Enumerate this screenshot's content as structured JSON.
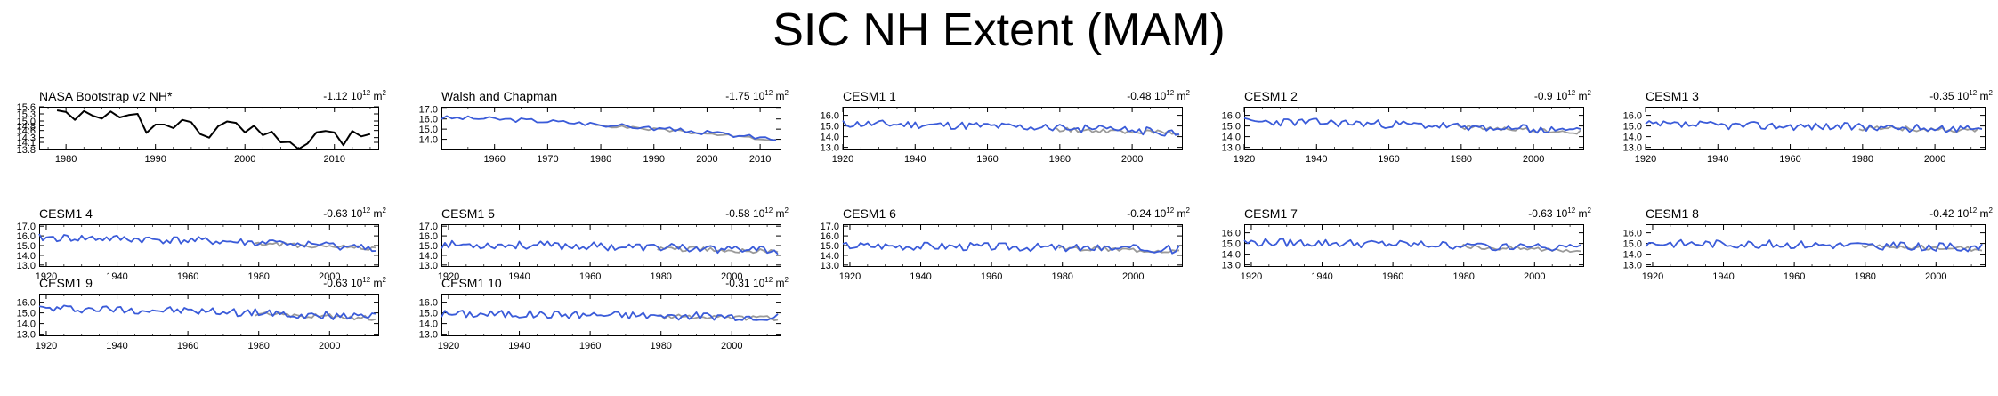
{
  "title": "SIC NH Extent (MAM)",
  "colors": {
    "single": "#000000",
    "model": "#3a5bd9",
    "obs": "#9a9a9a"
  },
  "trend_units": {
    "base": "10",
    "exponent": "12",
    "unit": "m",
    "unit_exp": "2"
  },
  "chart_data": [
    {
      "type": "line",
      "title": "NASA Bootstrap v2 NH*",
      "trend": "-1.12",
      "xlim": [
        1977,
        2015
      ],
      "ylim": [
        13.8,
        15.6
      ],
      "xticks": [
        "1980",
        "1990",
        "2000",
        "2010"
      ],
      "yticks": [
        "13.8",
        "14.1",
        "14.3",
        "14.6",
        "14.8",
        "15.0",
        "15.3",
        "15.6"
      ],
      "style": "single",
      "series": [
        {
          "x": [
            1979,
            1980,
            1981,
            1982,
            1983,
            1984,
            1985,
            1986,
            1987,
            1988,
            1989,
            1990,
            1991,
            1992,
            1993,
            1994,
            1995,
            1996,
            1997,
            1998,
            1999,
            2000,
            2001,
            2002,
            2003,
            2004,
            2005,
            2006,
            2007,
            2008,
            2009,
            2010,
            2011,
            2012,
            2013,
            2014
          ],
          "values": [
            15.45,
            15.38,
            15.05,
            15.42,
            15.22,
            15.1,
            15.4,
            15.15,
            15.25,
            15.3,
            14.5,
            14.85,
            14.85,
            14.7,
            15.05,
            14.95,
            14.45,
            14.3,
            14.78,
            14.98,
            14.92,
            14.52,
            14.8,
            14.4,
            14.55,
            14.1,
            14.12,
            13.82,
            14.05,
            14.52,
            14.58,
            14.52,
            13.98,
            14.58,
            14.35,
            14.45
          ]
        }
      ]
    },
    {
      "type": "line",
      "title": "Walsh and Chapman",
      "trend": "-1.75",
      "xlim": [
        1950,
        2014
      ],
      "ylim": [
        13.0,
        17.2
      ],
      "xticks": [
        "1960",
        "1970",
        "1980",
        "1990",
        "2000",
        "2010"
      ],
      "yticks": [
        "14.0",
        "15.0",
        "16.0",
        "17.0"
      ],
      "style": "pair",
      "seed": 3,
      "x_start": 1950,
      "x_end": 2013,
      "obs_start": 1979,
      "start": 16.1,
      "end": 14.0,
      "amp": 0.22
    },
    {
      "type": "line",
      "title": "CESM1 1",
      "trend": "-0.48",
      "xlim": [
        1920,
        2014
      ],
      "ylim": [
        12.8,
        16.8
      ],
      "xticks": [
        "1920",
        "1940",
        "1960",
        "1980",
        "2000"
      ],
      "yticks": [
        "13.0",
        "14.0",
        "15.0",
        "16.0"
      ],
      "style": "pair",
      "seed": 11,
      "x_start": 1920,
      "x_end": 2013,
      "obs_start": 1979,
      "start": 15.2,
      "end": 14.4,
      "amp": 0.38
    },
    {
      "type": "line",
      "title": "CESM1 2",
      "trend": "-0.9",
      "xlim": [
        1920,
        2014
      ],
      "ylim": [
        12.8,
        16.8
      ],
      "xticks": [
        "1920",
        "1940",
        "1960",
        "1980",
        "2000"
      ],
      "yticks": [
        "13.0",
        "14.0",
        "15.0",
        "16.0"
      ],
      "style": "pair",
      "seed": 23,
      "x_start": 1920,
      "x_end": 2013,
      "obs_start": 1979,
      "start": 15.4,
      "end": 14.5,
      "amp": 0.38
    },
    {
      "type": "line",
      "title": "CESM1 3",
      "trend": "-0.35",
      "xlim": [
        1920,
        2014
      ],
      "ylim": [
        12.8,
        16.8
      ],
      "xticks": [
        "1920",
        "1940",
        "1960",
        "1980",
        "2000"
      ],
      "yticks": [
        "13.0",
        "14.0",
        "15.0",
        "16.0"
      ],
      "style": "pair",
      "seed": 37,
      "x_start": 1920,
      "x_end": 2013,
      "obs_start": 1979,
      "start": 15.1,
      "end": 14.7,
      "amp": 0.38
    },
    {
      "type": "line",
      "title": "CESM1 4",
      "trend": "-0.63",
      "xlim": [
        1918,
        2014
      ],
      "ylim": [
        12.8,
        17.2
      ],
      "xticks": [
        "1920",
        "1940",
        "1960",
        "1980",
        "2000"
      ],
      "yticks": [
        "13.0",
        "14.0",
        "15.0",
        "16.0",
        "17.0"
      ],
      "style": "pair",
      "seed": 41,
      "x_start": 1918,
      "x_end": 2013,
      "obs_start": 1979,
      "start": 15.8,
      "end": 14.8,
      "amp": 0.4
    },
    {
      "type": "line",
      "title": "CESM1 5",
      "trend": "-0.58",
      "xlim": [
        1918,
        2014
      ],
      "ylim": [
        12.8,
        17.2
      ],
      "xticks": [
        "1920",
        "1940",
        "1960",
        "1980",
        "2000"
      ],
      "yticks": [
        "13.0",
        "14.0",
        "15.0",
        "16.0",
        "17.0"
      ],
      "style": "pair",
      "seed": 53,
      "x_start": 1918,
      "x_end": 2013,
      "obs_start": 1979,
      "start": 15.1,
      "end": 14.5,
      "amp": 0.42
    },
    {
      "type": "line",
      "title": "CESM1 6",
      "trend": "-0.24",
      "xlim": [
        1918,
        2014
      ],
      "ylim": [
        12.8,
        17.2
      ],
      "xticks": [
        "1920",
        "1940",
        "1960",
        "1980",
        "2000"
      ],
      "yticks": [
        "13.0",
        "14.0",
        "15.0",
        "16.0",
        "17.0"
      ],
      "style": "pair",
      "seed": 67,
      "x_start": 1918,
      "x_end": 2013,
      "obs_start": 1979,
      "start": 15.0,
      "end": 14.6,
      "amp": 0.42
    },
    {
      "type": "line",
      "title": "CESM1 7",
      "trend": "-0.63",
      "xlim": [
        1918,
        2014
      ],
      "ylim": [
        12.8,
        16.8
      ],
      "xticks": [
        "1920",
        "1940",
        "1960",
        "1980",
        "2000"
      ],
      "yticks": [
        "13.0",
        "14.0",
        "15.0",
        "16.0"
      ],
      "style": "pair",
      "seed": 79,
      "x_start": 1918,
      "x_end": 2013,
      "obs_start": 1979,
      "start": 15.1,
      "end": 14.5,
      "amp": 0.38
    },
    {
      "type": "line",
      "title": "CESM1 8",
      "trend": "-0.42",
      "xlim": [
        1918,
        2014
      ],
      "ylim": [
        12.8,
        16.8
      ],
      "xticks": [
        "1920",
        "1940",
        "1960",
        "1980",
        "2000"
      ],
      "yticks": [
        "13.0",
        "14.0",
        "15.0",
        "16.0"
      ],
      "style": "pair",
      "seed": 83,
      "x_start": 1918,
      "x_end": 2013,
      "obs_start": 1979,
      "start": 15.0,
      "end": 14.6,
      "amp": 0.38
    },
    {
      "type": "line",
      "title": "CESM1 9",
      "trend": "-0.63",
      "xlim": [
        1918,
        2014
      ],
      "ylim": [
        12.8,
        16.8
      ],
      "xticks": [
        "1920",
        "1940",
        "1960",
        "1980",
        "2000"
      ],
      "yticks": [
        "13.0",
        "14.0",
        "15.0",
        "16.0"
      ],
      "style": "pair",
      "seed": 97,
      "x_start": 1918,
      "x_end": 2013,
      "obs_start": 1979,
      "start": 15.4,
      "end": 14.6,
      "amp": 0.38
    },
    {
      "type": "line",
      "title": "CESM1 10",
      "trend": "-0.31",
      "xlim": [
        1918,
        2014
      ],
      "ylim": [
        12.8,
        16.8
      ],
      "xticks": [
        "1920",
        "1940",
        "1960",
        "1980",
        "2000"
      ],
      "yticks": [
        "13.0",
        "14.0",
        "15.0",
        "16.0"
      ],
      "style": "pair",
      "seed": 101,
      "x_start": 1918,
      "x_end": 2013,
      "obs_start": 1979,
      "start": 14.9,
      "end": 14.6,
      "amp": 0.38
    }
  ]
}
